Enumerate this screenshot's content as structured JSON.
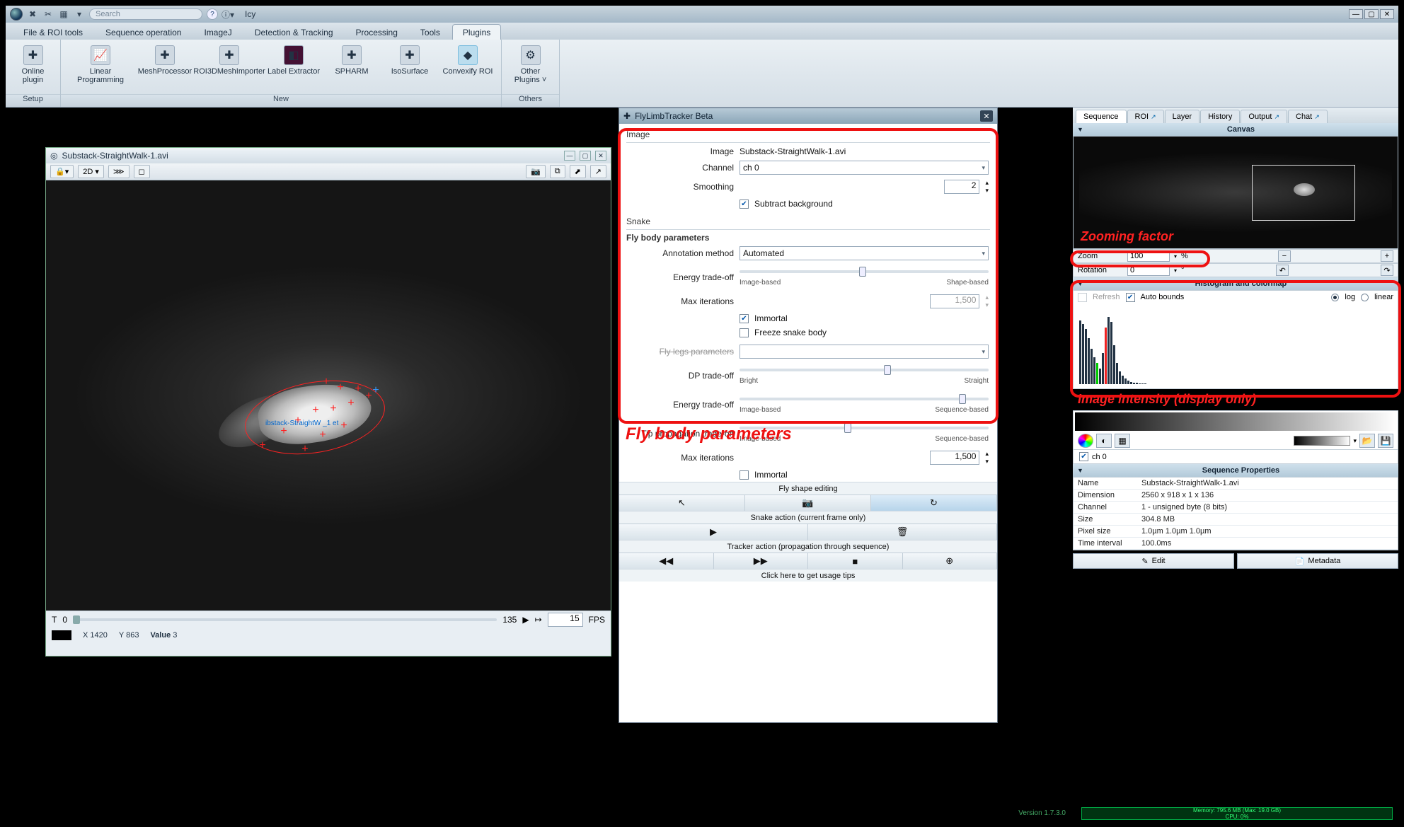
{
  "app": {
    "name": "Icy",
    "search_placeholder": "Search",
    "version": "Version 1.7.3.0"
  },
  "menutabs": [
    "File & ROI tools",
    "Sequence operation",
    "ImageJ",
    "Detection & Tracking",
    "Processing",
    "Tools",
    "Plugins"
  ],
  "menutabs_active": 6,
  "ribbon": {
    "groups": [
      {
        "name": "Setup",
        "items": [
          {
            "label": "Online plugin",
            "icon": "✚"
          }
        ]
      },
      {
        "name": "New",
        "items": [
          {
            "label": "Linear Programming",
            "icon": "📈"
          },
          {
            "label": "MeshProcessor",
            "icon": "✚"
          },
          {
            "label": "ROI3DMeshImporter",
            "icon": "✚"
          },
          {
            "label": "Label Extractor",
            "icon": "◧"
          },
          {
            "label": "SPHARM",
            "icon": "✚"
          },
          {
            "label": "IsoSurface",
            "icon": "✚"
          },
          {
            "label": "Convexify ROI",
            "icon": "◆"
          }
        ]
      },
      {
        "name": "Others",
        "items": [
          {
            "label": "Other Plugins ˅",
            "icon": "⚙"
          }
        ]
      }
    ]
  },
  "viewer": {
    "title": "Substack-StraightWalk-1.avi",
    "toolbar": {
      "lock": "🔒▾",
      "mode": "2D ▾",
      "layers": "⋙",
      "crop": "◻"
    },
    "overlay_label": "ibstack-StraightW  _1  et",
    "cross_positions": [
      [
        150,
        20
      ],
      [
        170,
        28
      ],
      [
        195,
        30
      ],
      [
        210,
        40
      ],
      [
        185,
        50
      ],
      [
        160,
        58
      ],
      [
        135,
        60
      ],
      [
        110,
        75
      ],
      [
        90,
        90
      ],
      [
        145,
        95
      ],
      [
        175,
        82
      ],
      [
        60,
        110
      ],
      [
        120,
        115
      ]
    ],
    "blue_cross": [
      220,
      32
    ],
    "timeline": {
      "label": "T",
      "value": "0",
      "max": "135",
      "fps": "15",
      "fps_label": "FPS"
    },
    "status": {
      "x_label": "X",
      "x": "1420",
      "y_label": "Y",
      "y": "863",
      "value_label": "Value",
      "value": "3"
    }
  },
  "plugin": {
    "title": "FlyLimbTracker Beta",
    "image_section": "Image",
    "image_label": "Image",
    "image_name": "Substack-StraightWalk-1.avi",
    "channel_label": "Channel",
    "channel_value": "ch 0",
    "smoothing_label": "Smoothing",
    "smoothing_value": "2",
    "subtract_bg": "Subtract background",
    "snake_section": "Snake",
    "body_header": "Fly body parameters",
    "annotation_label": "Annotation method",
    "annotation_value": "Automated",
    "energy_label": "Energy trade-off",
    "energy_left": "Image-based",
    "energy_right": "Shape-based",
    "maxiter_label": "Max iterations",
    "maxiter_value": "1,500",
    "immortal": "Immortal",
    "freeze": "Freeze snake body",
    "legs_header": "Fly legs parameters",
    "dp_label": "DP trade-off",
    "dp_left": "Bright",
    "dp_right": "Straight",
    "energy2_left": "Image-based",
    "energy2_right": "Sequence-based",
    "tip_label": "Tip propagation trade-off",
    "tip_left": "Image-based",
    "tip_right": "Sequence-based",
    "maxiter2_value": "1,500",
    "shape_editing": "Fly shape editing",
    "snake_action": "Snake action (current frame only)",
    "tracker_action": "Tracker action (propagation through sequence)",
    "tips": "Click here to get usage tips"
  },
  "annotations": {
    "body_params": "Fly body parameters",
    "zoom": "Zooming factor",
    "intensity": "Image intensity (display only)"
  },
  "sidebar": {
    "tabs": [
      "Sequence",
      "ROI",
      "Layer",
      "History",
      "Output",
      "Chat"
    ],
    "active_tab": 0,
    "canvas_title": "Canvas",
    "zoom_label": "Zoom",
    "zoom_value": "100",
    "zoom_unit": "%",
    "rotation_label": "Rotation",
    "rotation_value": "0",
    "rotation_unit": "°",
    "histo_title": "Histogram and colormap",
    "refresh": "Refresh",
    "autobounds": "Auto bounds",
    "log": "log",
    "linear": "linear",
    "ch0": "ch 0",
    "seqprops_title": "Sequence Properties",
    "props": [
      [
        "Name",
        "Substack-StraightWalk-1.avi"
      ],
      [
        "Dimension",
        "2560 x 918 x 1 x 136"
      ],
      [
        "Channel",
        "1 - unsigned byte (8 bits)"
      ],
      [
        "Size",
        "304.8 MB"
      ],
      [
        "Pixel size",
        "1.0µm                    1.0µm                    1.0µm"
      ],
      [
        "Time interval",
        "100.0ms"
      ]
    ],
    "edit": "Edit",
    "metadata": "Metadata"
  },
  "memory": {
    "line1": "Memory: 795.6 MB (Max: 19.0 GB)",
    "line2": "CPU: 0%"
  },
  "histogram_bars": [
    90,
    85,
    78,
    65,
    50,
    38,
    30,
    22,
    44,
    80,
    95,
    88,
    55,
    30,
    18,
    12,
    8,
    5,
    3,
    2,
    2,
    1,
    1,
    1
  ],
  "histogram_colors": [
    "#234",
    "#234",
    "#234",
    "#234",
    "#234",
    "#234",
    "#0c0",
    "#234",
    "#234",
    "#e22",
    "#234",
    "#234",
    "#234",
    "#234",
    "#234",
    "#234",
    "#234",
    "#234",
    "#234",
    "#234",
    "#234",
    "#234",
    "#234",
    "#234"
  ]
}
